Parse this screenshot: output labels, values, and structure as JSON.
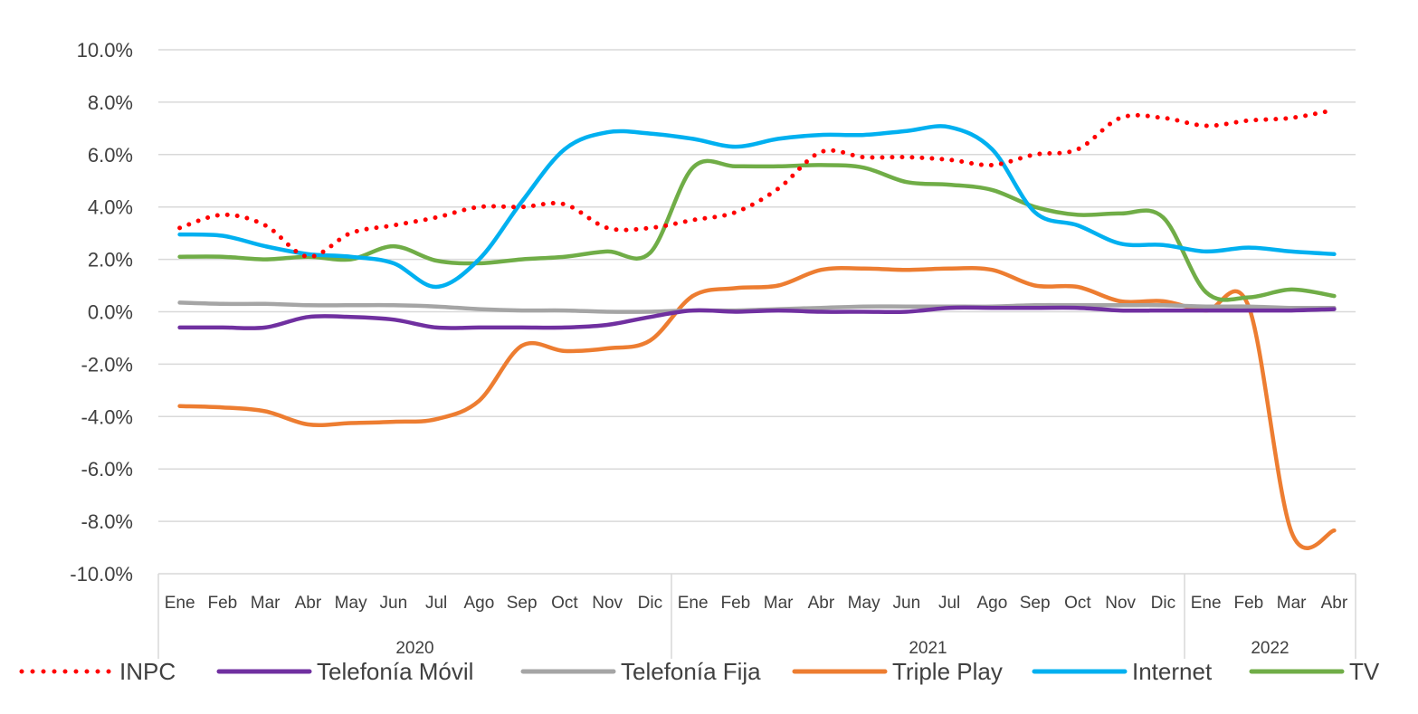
{
  "chart_data": {
    "type": "line",
    "x_months": [
      "Ene",
      "Feb",
      "Mar",
      "Abr",
      "May",
      "Jun",
      "Jul",
      "Ago",
      "Sep",
      "Oct",
      "Nov",
      "Dic",
      "Ene",
      "Feb",
      "Mar",
      "Abr",
      "May",
      "Jun",
      "Jul",
      "Ago",
      "Sep",
      "Oct",
      "Nov",
      "Dic",
      "Ene",
      "Feb",
      "Mar",
      "Abr"
    ],
    "x_years": [
      {
        "label": "2020",
        "start": 0,
        "end": 11
      },
      {
        "label": "2021",
        "start": 12,
        "end": 23
      },
      {
        "label": "2022",
        "start": 24,
        "end": 27
      }
    ],
    "y_ticks": [
      "10.0%",
      "8.0%",
      "6.0%",
      "4.0%",
      "2.0%",
      "0.0%",
      "-2.0%",
      "-4.0%",
      "-6.0%",
      "-8.0%",
      "-10.0%"
    ],
    "ylim": [
      -10,
      10
    ],
    "grid": true,
    "legend_position": "bottom",
    "series": [
      {
        "name": "INPC",
        "color": "#ff0000",
        "style": "dotted",
        "values": [
          3.2,
          3.7,
          3.3,
          2.1,
          3.0,
          3.3,
          3.6,
          4.0,
          4.0,
          4.1,
          3.2,
          3.2,
          3.5,
          3.8,
          4.7,
          6.1,
          5.9,
          5.9,
          5.8,
          5.6,
          6.0,
          6.2,
          7.4,
          7.4,
          7.1,
          7.3,
          7.4,
          7.7
        ]
      },
      {
        "name": "Telefonía Móvil",
        "color": "#7030a0",
        "style": "solid",
        "values": [
          -0.6,
          -0.6,
          -0.6,
          -0.2,
          -0.2,
          -0.3,
          -0.6,
          -0.6,
          -0.6,
          -0.6,
          -0.5,
          -0.2,
          0.05,
          0.0,
          0.05,
          0.0,
          0.0,
          0.0,
          0.15,
          0.15,
          0.15,
          0.15,
          0.05,
          0.05,
          0.05,
          0.05,
          0.05,
          0.1
        ]
      },
      {
        "name": "Telefonía Fija",
        "color": "#a5a5a5",
        "style": "solid",
        "values": [
          0.35,
          0.3,
          0.3,
          0.25,
          0.25,
          0.25,
          0.2,
          0.1,
          0.05,
          0.05,
          0.0,
          0.0,
          0.05,
          0.05,
          0.1,
          0.15,
          0.2,
          0.2,
          0.2,
          0.2,
          0.25,
          0.25,
          0.25,
          0.25,
          0.2,
          0.2,
          0.15,
          0.15
        ]
      },
      {
        "name": "Triple Play",
        "color": "#ed7d31",
        "style": "solid",
        "values": [
          -3.6,
          -3.65,
          -3.8,
          -4.3,
          -4.25,
          -4.2,
          -4.1,
          -3.4,
          -1.3,
          -1.5,
          -1.4,
          -1.1,
          0.6,
          0.9,
          1.0,
          1.6,
          1.65,
          1.6,
          1.65,
          1.6,
          1.0,
          0.95,
          0.4,
          0.4,
          0.05,
          0.2,
          -8.4,
          -8.35
        ]
      },
      {
        "name": "Internet",
        "color": "#00b0f0",
        "style": "solid",
        "values": [
          2.95,
          2.9,
          2.5,
          2.2,
          2.1,
          1.85,
          0.95,
          2.0,
          4.2,
          6.2,
          6.85,
          6.8,
          6.6,
          6.3,
          6.6,
          6.75,
          6.75,
          6.9,
          7.05,
          6.2,
          3.8,
          3.3,
          2.6,
          2.55,
          2.3,
          2.45,
          2.3,
          2.2
        ]
      },
      {
        "name": "TV",
        "color": "#70ad47",
        "style": "solid",
        "values": [
          2.1,
          2.1,
          2.0,
          2.1,
          2.0,
          2.5,
          1.95,
          1.85,
          2.0,
          2.1,
          2.3,
          2.25,
          5.5,
          5.55,
          5.55,
          5.6,
          5.5,
          4.95,
          4.85,
          4.65,
          4.0,
          3.7,
          3.75,
          3.6,
          0.75,
          0.55,
          0.85,
          0.6
        ]
      }
    ]
  }
}
